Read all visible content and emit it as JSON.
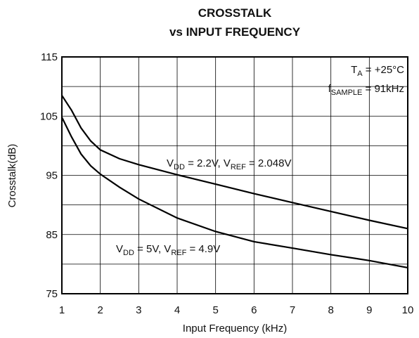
{
  "chart_data": {
    "type": "line",
    "title": [
      "CROSSTALK",
      "vs INPUT FREQUENCY"
    ],
    "x_label": "Input Frequency (kHz)",
    "y_label": "Crosstalk(dB)",
    "xlim": [
      1,
      10
    ],
    "ylim": [
      75,
      115
    ],
    "xticks": [
      1,
      2,
      3,
      4,
      5,
      6,
      7,
      8,
      9,
      10
    ],
    "yticks": [
      75,
      85,
      95,
      105,
      115
    ],
    "minor_yticks": [
      80,
      90,
      100,
      110
    ],
    "grid": true,
    "series": [
      {
        "label_parts": [
          {
            "text": "V"
          },
          {
            "text": "DD",
            "sub": true
          },
          {
            "text": " = 2.2V, V"
          },
          {
            "text": "REF",
            "sub": true
          },
          {
            "text": " = 2.048V"
          }
        ],
        "color": "#000000",
        "x": [
          1,
          1.25,
          1.5,
          1.75,
          2,
          2.5,
          3,
          4,
          5,
          6,
          7,
          8,
          9,
          10
        ],
        "values": [
          108.5,
          106,
          103,
          100.8,
          99.3,
          97.8,
          96.8,
          95.1,
          93.5,
          91.9,
          90.4,
          88.9,
          87.4,
          86.0
        ]
      },
      {
        "label_parts": [
          {
            "text": "V"
          },
          {
            "text": "DD",
            "sub": true
          },
          {
            "text": " = 5V, V"
          },
          {
            "text": "REF",
            "sub": true
          },
          {
            "text": " = 4.9V"
          }
        ],
        "color": "#000000",
        "x": [
          1,
          1.25,
          1.5,
          1.75,
          2,
          2.5,
          3,
          4,
          5,
          6,
          7,
          8,
          9,
          10
        ],
        "values": [
          104.8,
          101.5,
          98.6,
          96.6,
          95.2,
          93,
          91,
          87.8,
          85.5,
          83.8,
          82.7,
          81.6,
          80.6,
          79.4
        ]
      }
    ],
    "annotations": [
      [
        {
          "text": "T"
        },
        {
          "text": "A",
          "sub": true
        },
        {
          "text": " = +25°C"
        }
      ],
      [
        {
          "text": "f"
        },
        {
          "text": "SAMPLE",
          "sub": true
        },
        {
          "text": " = 91kHz"
        }
      ]
    ]
  }
}
